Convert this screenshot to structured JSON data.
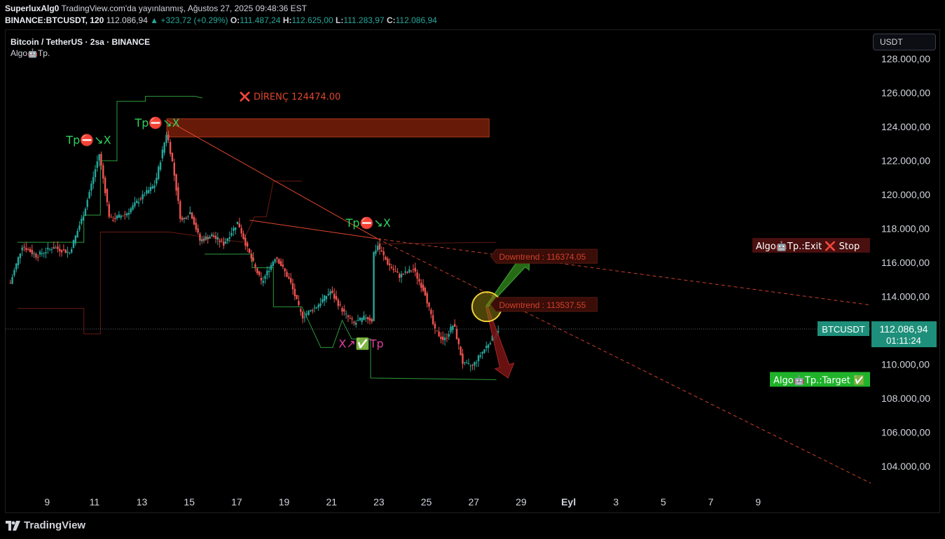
{
  "header": {
    "author": "SuperluxAlg0",
    "published": "TradingView.com'da yayınlanmış, Ağustos 27, 2025 09:48:36 EST",
    "symbol": "BINANCE:BTCUSDT, 120",
    "last": "112.086,94",
    "change": "▲ +323,72 (+0.29%)",
    "o_label": "O:",
    "o": "111.487,24",
    "h_label": "H:",
    "h": "112.625,00",
    "l_label": "L:",
    "l": "111.283,97",
    "c_label": "C:",
    "c": "112.086,94"
  },
  "legend": {
    "symbol_line": "Bitcoin / TetherUS · 2sa · BINANCE",
    "indicator": "Algo🤖Tp."
  },
  "currency": "USDT",
  "footer": {
    "brand": "TradingView"
  },
  "colors": {
    "background": "#000000",
    "up": "#26a69a",
    "down": "#ef5350",
    "resistance": "#7a1e0a",
    "band": "#2e7d32",
    "label_green": "#1fb32a",
    "label_red": "#5a1210"
  },
  "chart_data": {
    "type": "candlestick",
    "symbol": "BTCUSDT",
    "timeframe": "120",
    "y_ticks": [
      104000,
      106000,
      108000,
      110000,
      112000,
      114000,
      116000,
      118000,
      120000,
      122000,
      124000,
      126000,
      128000
    ],
    "y_tick_labels": [
      "104.000,00",
      "106.000,00",
      "108.000,00",
      "110.000,00",
      "114.000,00",
      "116.000,00",
      "118.000,00",
      "120.000,00",
      "122.000,00",
      "124.000,00",
      "126.000,00",
      "128.000,00"
    ],
    "ylim": [
      102600,
      129000
    ],
    "x_tick_labels": [
      "9",
      "11",
      "13",
      "15",
      "17",
      "19",
      "21",
      "23",
      "25",
      "27",
      "29",
      "Eyl",
      "3",
      "5",
      "7",
      "9"
    ],
    "xlim_days": [
      7.3,
      43.8
    ],
    "path": [
      [
        7.5,
        114800
      ],
      [
        8.0,
        117000
      ],
      [
        8.6,
        116400
      ],
      [
        9.3,
        116900
      ],
      [
        10.0,
        116600
      ],
      [
        10.6,
        118900
      ],
      [
        11.25,
        122400
      ],
      [
        11.7,
        118500
      ],
      [
        12.4,
        118900
      ],
      [
        13.0,
        119800
      ],
      [
        13.6,
        120600
      ],
      [
        14.1,
        123700
      ],
      [
        14.35,
        121800
      ],
      [
        14.7,
        118400
      ],
      [
        15.1,
        119000
      ],
      [
        15.5,
        117300
      ],
      [
        16.0,
        117600
      ],
      [
        16.5,
        117100
      ],
      [
        17.1,
        118400
      ],
      [
        17.5,
        116800
      ],
      [
        18.1,
        114800
      ],
      [
        18.7,
        116400
      ],
      [
        19.3,
        114900
      ],
      [
        19.8,
        112800
      ],
      [
        20.4,
        113400
      ],
      [
        21.0,
        114300
      ],
      [
        21.6,
        113000
      ],
      [
        22.0,
        112400
      ],
      [
        22.5,
        112800
      ],
      [
        22.75,
        112600
      ],
      [
        22.8,
        116500
      ],
      [
        23.0,
        117000
      ],
      [
        23.4,
        116000
      ],
      [
        23.9,
        115200
      ],
      [
        24.5,
        115600
      ],
      [
        25.0,
        114200
      ],
      [
        25.4,
        112000
      ],
      [
        25.8,
        111400
      ],
      [
        26.2,
        112400
      ],
      [
        26.6,
        110000
      ],
      [
        27.0,
        109900
      ],
      [
        27.4,
        110700
      ],
      [
        27.8,
        111500
      ],
      [
        28.1,
        112087
      ]
    ],
    "current_price": 112086.94,
    "current_price_label": "112.086,94",
    "countdown": "01:11:24",
    "symbol_tag": "BTCUSDT",
    "resistance": {
      "label": "DİRENÇ 124474.00",
      "value": 124474.0,
      "x_start": 14.1,
      "x_end": 27.7,
      "y_low": 123400
    },
    "trendlines": [
      {
        "name": "Downtrend",
        "value": 116374.05,
        "label": "Downtrend : 116374.05",
        "from": [
          23.0,
          117400
        ],
        "to": [
          43.8,
          113500
        ]
      },
      {
        "name": "Downtrend",
        "value": 113537.55,
        "label": "Downtrend : 113537.55",
        "from": [
          23.0,
          117400
        ],
        "to": [
          43.8,
          103000
        ]
      }
    ],
    "upper_band": [
      [
        7.8,
        117200
      ],
      [
        10.6,
        117200
      ],
      [
        10.6,
        118800
      ],
      [
        11.3,
        118800
      ],
      [
        11.3,
        122000
      ],
      [
        12.0,
        122000
      ],
      [
        12.0,
        125500
      ],
      [
        13.2,
        125500
      ],
      [
        13.2,
        125800
      ],
      [
        15.3,
        125800
      ],
      [
        15.6,
        125700
      ]
    ],
    "red_band": [
      [
        7.8,
        113300
      ],
      [
        10.6,
        113300
      ],
      [
        10.6,
        111800
      ],
      [
        11.3,
        111800
      ],
      [
        11.3,
        117800
      ],
      [
        14.2,
        117800
      ],
      [
        17.3,
        117200
      ],
      [
        17.8,
        118700
      ],
      [
        18.3,
        118700
      ],
      [
        18.6,
        120800
      ],
      [
        19.8,
        120800
      ]
    ],
    "lower_band": [
      [
        15.7,
        116500
      ],
      [
        17.7,
        116500
      ],
      [
        17.7,
        115700
      ],
      [
        18.6,
        115700
      ],
      [
        18.6,
        113400
      ],
      [
        19.8,
        113400
      ],
      [
        20.6,
        111000
      ],
      [
        21.1,
        111000
      ],
      [
        21.5,
        112600
      ],
      [
        21.9,
        111500
      ],
      [
        22.7,
        111500
      ],
      [
        22.7,
        109200
      ],
      [
        28.0,
        109100
      ]
    ],
    "upper_dark_red": [
      [
        23.0,
        117100
      ],
      [
        28.0,
        117200
      ]
    ],
    "signals": [
      {
        "label": "Tp⛔↘X",
        "x": 10.8,
        "price": 123000,
        "color": "#2fd15d"
      },
      {
        "label": "Tp⛔↘X",
        "x": 13.7,
        "price": 124000,
        "color": "#2fd15d"
      },
      {
        "label": "Tp⛔↘X",
        "x": 22.6,
        "price": 118100,
        "color": "#2fd15d"
      },
      {
        "label": "X↗✅Tp",
        "x": 22.3,
        "price": 111000,
        "color": "#e040a0"
      }
    ],
    "circle_marker": {
      "x": 27.6,
      "price": 113400
    },
    "arrows": [
      {
        "direction": "up",
        "from": [
          27.6,
          113400
        ],
        "to": [
          29.4,
          116500
        ],
        "color": "#2e7d1a"
      },
      {
        "direction": "down",
        "from": [
          27.6,
          113400
        ],
        "to": [
          28.5,
          109200
        ],
        "color": "#7a1414"
      }
    ],
    "side_labels": [
      {
        "text": "Algo🤖Tp.:Exit ❌ Stop",
        "price": 117000,
        "bg": "#4a0f0f"
      },
      {
        "text": "Algo🤖Tp.:Target ✅",
        "price": 109100,
        "bg": "#1fb32a"
      }
    ]
  }
}
